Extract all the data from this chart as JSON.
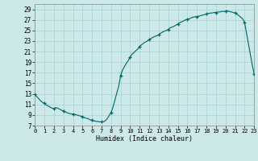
{
  "title": "",
  "xlabel": "Humidex (Indice chaleur)",
  "ylabel": "",
  "xlim": [
    0,
    23
  ],
  "ylim": [
    7,
    30
  ],
  "yticks": [
    7,
    9,
    11,
    13,
    15,
    17,
    19,
    21,
    23,
    25,
    27,
    29
  ],
  "xticks": [
    0,
    1,
    2,
    3,
    4,
    5,
    6,
    7,
    8,
    9,
    10,
    11,
    12,
    13,
    14,
    15,
    16,
    17,
    18,
    19,
    20,
    21,
    22,
    23
  ],
  "bg_color": "#cce8e8",
  "grid_color": "#b0d8d8",
  "line_color": "#006666",
  "marker_color": "#006666",
  "x": [
    0,
    0.2,
    0.4,
    0.6,
    0.8,
    1.0,
    1.2,
    1.4,
    1.6,
    1.8,
    2.0,
    2.2,
    2.4,
    2.6,
    2.8,
    3.0,
    3.2,
    3.4,
    3.6,
    3.8,
    4.0,
    4.2,
    4.4,
    4.6,
    4.8,
    5.0,
    5.2,
    5.4,
    5.6,
    5.8,
    6.0,
    6.2,
    6.4,
    6.6,
    6.8,
    7.0,
    7.1,
    7.2,
    7.3,
    7.5,
    7.7,
    7.9,
    8.0,
    8.2,
    8.5,
    8.8,
    9.0,
    9.2,
    9.5,
    9.8,
    10.0,
    10.2,
    10.5,
    10.8,
    11.0,
    11.2,
    11.5,
    11.8,
    12.0,
    12.2,
    12.5,
    12.8,
    13.0,
    13.2,
    13.5,
    13.8,
    14.0,
    14.2,
    14.5,
    14.8,
    15.0,
    15.2,
    15.4,
    15.6,
    15.8,
    16.0,
    16.2,
    16.4,
    16.6,
    16.8,
    17.0,
    17.2,
    17.4,
    17.6,
    17.8,
    18.0,
    18.2,
    18.4,
    18.6,
    18.8,
    19.0,
    19.2,
    19.4,
    19.6,
    19.8,
    20.0,
    20.2,
    20.4,
    20.6,
    20.8,
    21.0,
    21.2,
    21.4,
    21.6,
    21.8,
    22.0,
    22.2,
    22.4,
    22.6,
    22.8,
    23.0
  ],
  "y": [
    13.0,
    12.5,
    12.1,
    11.7,
    11.4,
    11.2,
    10.9,
    10.7,
    10.5,
    10.3,
    10.2,
    10.4,
    10.3,
    10.1,
    9.9,
    9.8,
    9.6,
    9.4,
    9.3,
    9.2,
    9.2,
    9.1,
    9.0,
    8.9,
    8.8,
    8.7,
    8.5,
    8.4,
    8.3,
    8.1,
    8.0,
    7.9,
    7.8,
    7.8,
    7.7,
    7.7,
    7.7,
    7.7,
    7.8,
    8.1,
    8.6,
    9.2,
    9.5,
    10.5,
    12.5,
    14.5,
    16.5,
    17.5,
    18.5,
    19.3,
    20.0,
    20.5,
    21.0,
    21.5,
    22.0,
    22.3,
    22.7,
    23.0,
    23.3,
    23.5,
    23.8,
    24.0,
    24.2,
    24.5,
    24.8,
    25.0,
    25.2,
    25.5,
    25.7,
    26.0,
    26.2,
    26.5,
    26.6,
    26.8,
    27.0,
    27.1,
    27.2,
    27.4,
    27.5,
    27.6,
    27.6,
    27.7,
    27.8,
    27.9,
    28.0,
    28.1,
    28.2,
    28.3,
    28.3,
    28.4,
    28.4,
    28.5,
    28.5,
    28.6,
    28.6,
    28.6,
    28.7,
    28.6,
    28.5,
    28.4,
    28.3,
    28.1,
    27.8,
    27.5,
    27.2,
    26.5,
    24.5,
    22.5,
    20.5,
    18.5,
    16.8
  ],
  "marker_x": [
    0,
    1,
    2,
    3,
    4,
    5,
    6,
    7,
    8,
    9,
    10,
    11,
    12,
    13,
    14,
    15,
    16,
    17,
    18,
    19,
    20,
    21,
    22,
    23
  ],
  "marker_y": [
    13.0,
    11.2,
    10.2,
    9.8,
    9.2,
    8.7,
    8.0,
    7.7,
    9.5,
    16.5,
    20.0,
    22.0,
    23.3,
    24.2,
    25.2,
    26.2,
    27.1,
    27.6,
    28.1,
    28.4,
    28.6,
    28.3,
    26.5,
    16.8
  ]
}
